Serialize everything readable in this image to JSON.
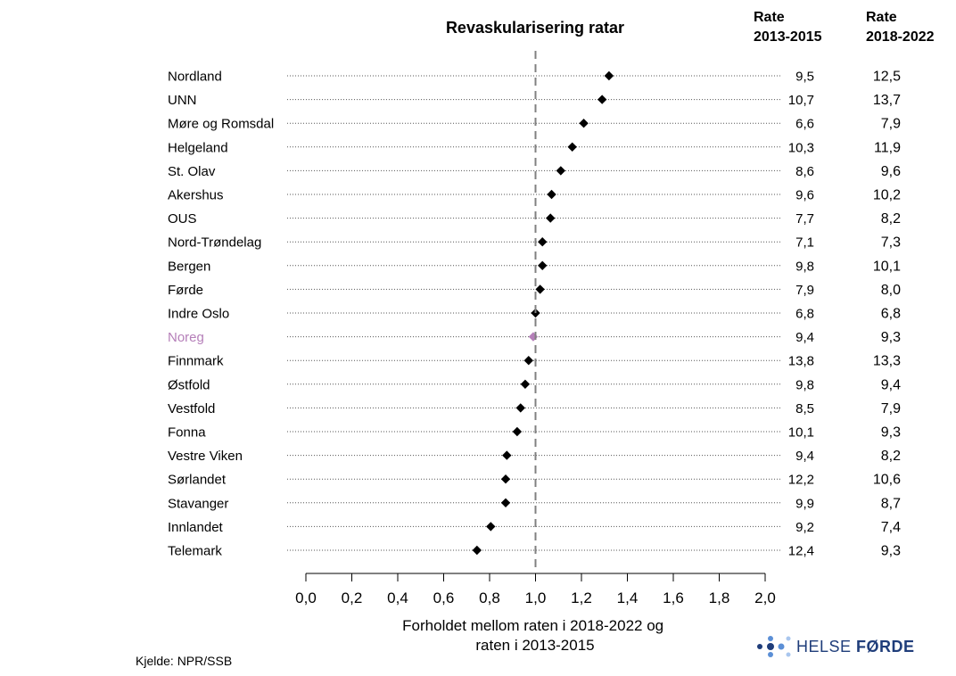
{
  "chart_data": {
    "type": "scatter",
    "title": "Revaskularisering ratar",
    "column_headers": [
      [
        "Rate",
        "2013-2015"
      ],
      [
        "Rate",
        "2018-2022"
      ]
    ],
    "xlabel": [
      "Forholdet mellom raten i 2018-2022 og",
      "raten i 2013-2015"
    ],
    "xlim": [
      0,
      2
    ],
    "xticks": [
      "0,0",
      "0,2",
      "0,4",
      "0,6",
      "0,8",
      "1,0",
      "1,2",
      "1,4",
      "1,6",
      "1,8",
      "2,0"
    ],
    "reference_line": 1.0,
    "highlight_color": "#b57fb9",
    "point_color": "#000000",
    "rows": [
      {
        "name": "Nordland",
        "ratio": 1.32,
        "rate1": "9,5",
        "rate2": "12,5"
      },
      {
        "name": "UNN",
        "ratio": 1.29,
        "rate1": "10,7",
        "rate2": "13,7"
      },
      {
        "name": "Møre og Romsdal",
        "ratio": 1.21,
        "rate1": "6,6",
        "rate2": "7,9"
      },
      {
        "name": "Helgeland",
        "ratio": 1.16,
        "rate1": "10,3",
        "rate2": "11,9"
      },
      {
        "name": "St. Olav",
        "ratio": 1.11,
        "rate1": "8,6",
        "rate2": "9,6"
      },
      {
        "name": "Akershus",
        "ratio": 1.07,
        "rate1": "9,6",
        "rate2": "10,2"
      },
      {
        "name": "OUS",
        "ratio": 1.065,
        "rate1": "7,7",
        "rate2": "8,2"
      },
      {
        "name": "Nord-Trøndelag",
        "ratio": 1.03,
        "rate1": "7,1",
        "rate2": "7,3"
      },
      {
        "name": "Bergen",
        "ratio": 1.03,
        "rate1": "9,8",
        "rate2": "10,1"
      },
      {
        "name": "Førde",
        "ratio": 1.02,
        "rate1": "7,9",
        "rate2": "8,0"
      },
      {
        "name": "Indre Oslo",
        "ratio": 1.0,
        "rate1": "6,8",
        "rate2": "6,8"
      },
      {
        "name": "Noreg",
        "ratio": 0.99,
        "rate1": "9,4",
        "rate2": "9,3",
        "highlight": true
      },
      {
        "name": "Finnmark",
        "ratio": 0.97,
        "rate1": "13,8",
        "rate2": "13,3"
      },
      {
        "name": "Østfold",
        "ratio": 0.955,
        "rate1": "9,8",
        "rate2": "9,4"
      },
      {
        "name": "Vestfold",
        "ratio": 0.935,
        "rate1": "8,5",
        "rate2": "7,9"
      },
      {
        "name": "Fonna",
        "ratio": 0.92,
        "rate1": "10,1",
        "rate2": "9,3"
      },
      {
        "name": "Vestre Viken",
        "ratio": 0.875,
        "rate1": "9,4",
        "rate2": "8,2"
      },
      {
        "name": "Sørlandet",
        "ratio": 0.87,
        "rate1": "12,2",
        "rate2": "10,6"
      },
      {
        "name": "Stavanger",
        "ratio": 0.87,
        "rate1": "9,9",
        "rate2": "8,7"
      },
      {
        "name": "Innlandet",
        "ratio": 0.805,
        "rate1": "9,2",
        "rate2": "7,4"
      },
      {
        "name": "Telemark",
        "ratio": 0.745,
        "rate1": "12,4",
        "rate2": "9,3"
      }
    ],
    "source": "Kjelde: NPR/SSB"
  },
  "logo": {
    "text_a": "HELSE ",
    "text_b": "FØRDE",
    "dot_colors": [
      "#1f3d7a",
      "#5b8fd6",
      "#a9c6ee"
    ]
  }
}
